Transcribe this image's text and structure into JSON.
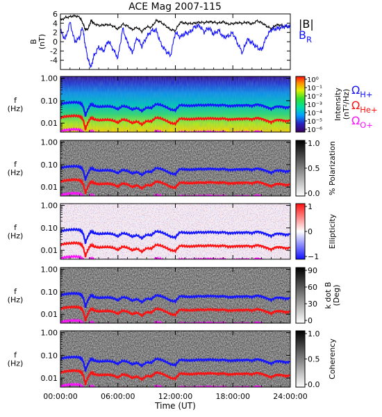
{
  "title": "ACE Mag 2007-115",
  "colors": {
    "black": "#000000",
    "br": "#1010ff",
    "h_plus": "#1414ff",
    "he_plus": "#ff1010",
    "o_plus": "#ff10ff"
  },
  "chart_data": [
    {
      "type": "line",
      "panel": "magnetic-field",
      "ylabel": "B\n(nT)",
      "ylim": [
        -6,
        6
      ],
      "yticks": [
        "6",
        "4",
        "2",
        "0",
        "-2",
        "-4"
      ],
      "xlim": [
        0,
        24
      ],
      "legend": {
        "placement": "right",
        "entries": [
          {
            "label": "|B|",
            "color": "#000000"
          },
          {
            "label": "B",
            "sub": "R",
            "color": "#1010ff"
          }
        ]
      },
      "series": [
        {
          "name": "|B|",
          "x": [
            0.0,
            0.5,
            1.0,
            1.5,
            2.0,
            2.3,
            2.6,
            2.9,
            3.2,
            3.5,
            4.0,
            4.5,
            5.0,
            5.5,
            6.0,
            6.5,
            7.0,
            7.5,
            8.0,
            8.5,
            9.0,
            9.5,
            10.0,
            10.5,
            11.0,
            11.5,
            12.0,
            12.5,
            13.0,
            13.5,
            14.0,
            14.5,
            15.0,
            15.5,
            16.0,
            16.5,
            17.0,
            17.5,
            18.0,
            18.5,
            19.0,
            19.5,
            20.0,
            20.5,
            21.0,
            21.5,
            22.0,
            22.5,
            23.0,
            23.5,
            24.0
          ],
          "values": [
            4.6,
            5.2,
            5.4,
            5.6,
            5.3,
            4.2,
            2.6,
            2.8,
            4.6,
            3.9,
            3.5,
            3.6,
            3.7,
            3.4,
            2.7,
            3.8,
            3.4,
            2.6,
            3.1,
            2.2,
            3.2,
            3.1,
            4.6,
            4.2,
            3.4,
            2.6,
            2.4,
            4.2,
            4.0,
            3.9,
            4.0,
            4.2,
            4.1,
            4.3,
            4.2,
            4.0,
            4.3,
            3.8,
            3.9,
            4.1,
            4.0,
            4.2,
            3.8,
            4.5,
            4.1,
            3.4,
            2.8,
            3.6,
            3.6,
            3.2,
            3.4
          ]
        },
        {
          "name": "B_R",
          "x": [
            0.0,
            0.5,
            1.0,
            1.5,
            2.0,
            2.3,
            2.6,
            2.9,
            3.2,
            3.5,
            4.0,
            4.5,
            5.0,
            5.5,
            6.0,
            6.5,
            7.0,
            7.5,
            8.0,
            8.5,
            9.0,
            9.5,
            10.0,
            10.5,
            11.0,
            11.5,
            12.0,
            12.5,
            13.0,
            13.5,
            14.0,
            14.5,
            15.0,
            15.5,
            16.0,
            16.5,
            17.0,
            17.5,
            18.0,
            18.5,
            19.0,
            19.5,
            20.0,
            20.5,
            21.0,
            21.5,
            22.0,
            22.5,
            23.0,
            23.5,
            24.0
          ],
          "values": [
            2.4,
            0.5,
            4.2,
            0.0,
            0.8,
            3.2,
            -0.8,
            -4.0,
            -5.5,
            -3.0,
            -1.2,
            -2.0,
            0.2,
            -1.6,
            -3.5,
            2.8,
            -0.2,
            -2.4,
            0.9,
            -1.0,
            1.0,
            2.4,
            2.5,
            -0.5,
            -2.0,
            -3.0,
            2.0,
            1.0,
            1.8,
            2.0,
            3.2,
            3.5,
            2.1,
            3.0,
            1.6,
            2.5,
            1.0,
            1.2,
            1.9,
            -0.4,
            -2.4,
            0.5,
            -0.2,
            -1.2,
            -1.8,
            1.0,
            2.6,
            2.8,
            3.0,
            3.4,
            3.2
          ]
        }
      ]
    },
    {
      "type": "heatmap",
      "panel": "intensity",
      "ylabel": "f\n(Hz)",
      "yscale": "log",
      "ylim": [
        0.004,
        1.2
      ],
      "yticks": [
        "1.00",
        "0.10",
        "0.01"
      ],
      "colorbar": {
        "colormap": "rainbow",
        "label": "Intensity\n(nT²/Hz)",
        "ticks": [
          "10⁰",
          "10⁻¹",
          "10⁻²",
          "10⁻³",
          "10⁻⁴",
          "10⁻⁵",
          "10⁻⁶"
        ]
      },
      "gyrofrequency_legend": [
        {
          "label": "Ω",
          "sub": "H+",
          "color": "#1414ff"
        },
        {
          "label": "Ω",
          "sub": "He+",
          "color": "#ff1010"
        },
        {
          "label": "Ω",
          "sub": "O+",
          "color": "#ff10ff"
        }
      ]
    },
    {
      "type": "heatmap",
      "panel": "polarization",
      "ylabel": "f\n(Hz)",
      "yscale": "log",
      "ylim": [
        0.004,
        1.2
      ],
      "yticks": [
        "1.00",
        "0.10",
        "0.01"
      ],
      "colorbar": {
        "colormap": "gray",
        "label": "% Polarization",
        "ticks": [
          "1.0",
          "0.5",
          "0.0"
        ]
      }
    },
    {
      "type": "heatmap",
      "panel": "ellipticity",
      "ylabel": "f\n(Hz)",
      "yscale": "log",
      "ylim": [
        0.004,
        1.2
      ],
      "yticks": [
        "1.00",
        "0.10",
        "0.01"
      ],
      "colorbar": {
        "colormap": "blue-white-red",
        "label": "Ellipticity",
        "ticks": [
          "1",
          "0",
          "−1"
        ]
      }
    },
    {
      "type": "heatmap",
      "panel": "k-dot-b",
      "ylabel": "f\n(Hz)",
      "yscale": "log",
      "ylim": [
        0.004,
        1.2
      ],
      "yticks": [
        "1.00",
        "0.10",
        "0.01"
      ],
      "colorbar": {
        "colormap": "gray",
        "label": "k dot B\n(Deg)",
        "ticks": [
          "90",
          "60",
          "30",
          "0"
        ]
      }
    },
    {
      "type": "heatmap",
      "panel": "coherency",
      "ylabel": "f\n(Hz)",
      "yscale": "log",
      "ylim": [
        0.004,
        1.2
      ],
      "yticks": [
        "1.00",
        "0.10",
        "0.01"
      ],
      "colorbar": {
        "colormap": "gray",
        "label": "Coherency",
        "ticks": [
          "1.0",
          "0.5",
          "0.0"
        ]
      },
      "xlabel": "Time (UT)",
      "xticks": [
        "00:00:00",
        "06:00:00",
        "12:00:00",
        "18:00:00",
        "24:00:00"
      ]
    }
  ],
  "gyrofrequencies": {
    "x": [
      0.0,
      0.5,
      1.0,
      1.5,
      2.0,
      2.3,
      2.6,
      2.9,
      3.2,
      3.5,
      4.0,
      4.5,
      5.0,
      5.5,
      6.0,
      6.5,
      7.0,
      7.5,
      8.0,
      8.5,
      9.0,
      9.5,
      10.0,
      10.5,
      11.0,
      11.5,
      12.0,
      12.5,
      13.0,
      13.5,
      14.0,
      14.5,
      15.0,
      15.5,
      16.0,
      16.5,
      17.0,
      17.5,
      18.0,
      18.5,
      19.0,
      19.5,
      20.0,
      20.5,
      21.0,
      21.5,
      22.0,
      22.5,
      23.0,
      23.5,
      24.0
    ],
    "h_plus_hz": [
      0.07,
      0.079,
      0.082,
      0.085,
      0.08,
      0.064,
      0.02,
      0.043,
      0.07,
      0.059,
      0.053,
      0.055,
      0.056,
      0.052,
      0.041,
      0.058,
      0.052,
      0.04,
      0.047,
      0.034,
      0.049,
      0.047,
      0.07,
      0.064,
      0.052,
      0.04,
      0.037,
      0.064,
      0.061,
      0.059,
      0.061,
      0.064,
      0.062,
      0.065,
      0.064,
      0.061,
      0.065,
      0.058,
      0.059,
      0.062,
      0.061,
      0.064,
      0.058,
      0.068,
      0.062,
      0.052,
      0.043,
      0.055,
      0.055,
      0.049,
      0.052
    ],
    "he_plus_hz": [
      0.0175,
      0.0198,
      0.0205,
      0.0213,
      0.02,
      0.016,
      0.005,
      0.0108,
      0.0175,
      0.0148,
      0.0133,
      0.0138,
      0.014,
      0.013,
      0.0103,
      0.0145,
      0.013,
      0.01,
      0.0118,
      0.0085,
      0.0123,
      0.0118,
      0.0175,
      0.016,
      0.013,
      0.01,
      0.0093,
      0.016,
      0.0153,
      0.0148,
      0.0153,
      0.016,
      0.0155,
      0.0163,
      0.016,
      0.0153,
      0.0163,
      0.0145,
      0.0148,
      0.0155,
      0.0153,
      0.016,
      0.0145,
      0.017,
      0.0155,
      0.013,
      0.0108,
      0.0138,
      0.0138,
      0.0123,
      0.013
    ],
    "o_plus_hz": [
      0.0044,
      0.0049,
      0.0051,
      0.0053,
      0.005,
      0.004,
      0.003,
      0.003,
      0.0044,
      0.0037,
      0.0033,
      0.0034,
      0.0035,
      0.0033,
      0.003,
      0.0036,
      0.0033,
      0.003,
      0.003,
      0.003,
      0.0031,
      0.003,
      0.0044,
      0.004,
      0.0033,
      0.003,
      0.003,
      0.004,
      0.0038,
      0.0037,
      0.0038,
      0.004,
      0.0039,
      0.0041,
      0.004,
      0.0038,
      0.0041,
      0.0036,
      0.0037,
      0.0039,
      0.0038,
      0.004,
      0.0036,
      0.0043,
      0.0039,
      0.0033,
      0.003,
      0.0034,
      0.0034,
      0.0031,
      0.0033
    ]
  }
}
